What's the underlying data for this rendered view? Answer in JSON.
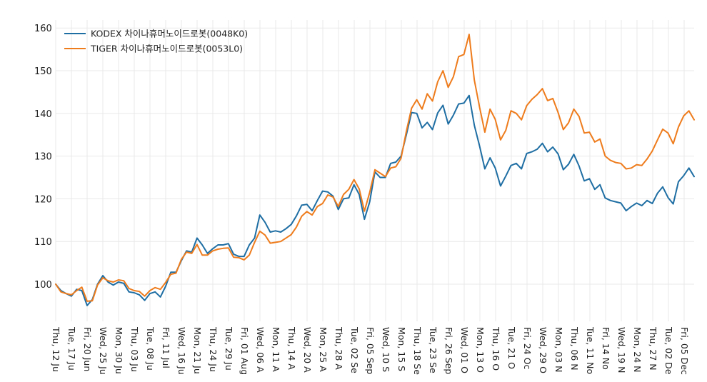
{
  "chart_data": {
    "type": "line",
    "title": "",
    "xlabel": "",
    "ylabel": "",
    "ylim": [
      93,
      162
    ],
    "yticks": [
      100,
      110,
      120,
      130,
      140,
      150,
      160
    ],
    "grid": true,
    "legend_position": "top-left",
    "tick_labels": [
      "Thu, 12 Ju",
      "Tue, 17 Ju",
      "Fri, 20 Jun",
      "Wed, 25 Ju",
      "Mon, 30 Ju",
      "Thu, 03 Ju",
      "Tue, 08 Ju",
      "Fri, 11 Jul",
      "Wed, 16 Ju",
      "Mon, 21 Ju",
      "Thu, 24 Ju",
      "Tue, 29 Ju",
      "Fri, 01 Aug",
      "Wed, 06 A",
      "Mon, 11 A",
      "Thu, 14 A",
      "Wed, 20 A",
      "Mon, 25 A",
      "Thu, 28 A",
      "Tue, 02 Se",
      "Fri, 05 Sep",
      "Wed, 10 S",
      "Mon, 15 S",
      "Thu, 18 Se",
      "Tue, 23 Se",
      "Fri, 26 Sep",
      "Wed, 01 O",
      "Mon, 13 O",
      "Thu, 16 O",
      "Tue, 21 O",
      "Fri, 24 Oc",
      "Wed, 29 O",
      "Mon, 03 N",
      "Thu, 06 N",
      "Tue, 11 No",
      "Fri, 14 No",
      "Wed, 19 N",
      "Mon, 24 N",
      "Thu, 27 N",
      "Tue, 02 De",
      "Fri, 05 Dec"
    ],
    "series": [
      {
        "name": "KODEX 차이나휴머노이드로봇(0048K0)",
        "color": "#1f6ea3",
        "values": [
          100,
          98.5,
          97.8,
          97.2,
          98.8,
          98.5,
          95.0,
          96.4,
          100.0,
          102.0,
          100.5,
          99.8,
          100.5,
          100.2,
          98.2,
          98.0,
          97.5,
          96.2,
          97.8,
          98.2,
          97.0,
          99.5,
          102.8,
          102.8,
          105.5,
          107.8,
          107.5,
          110.8,
          109.2,
          107.2,
          108.3,
          109.2,
          109.2,
          109.5,
          107.0,
          106.5,
          106.5,
          109.2,
          110.8,
          116.2,
          114.5,
          112.2,
          112.5,
          112.2,
          113.0,
          114.0,
          116.0,
          118.5,
          118.7,
          117.2,
          119.6,
          121.8,
          121.6,
          120.6,
          117.5,
          120.0,
          120.2,
          123.3,
          121.0,
          115.2,
          119.3,
          126.3,
          125.0,
          125.0,
          128.3,
          128.6,
          130.0,
          135.0,
          140.2,
          140.0,
          136.6,
          137.9,
          136.2,
          140.1,
          141.9,
          137.5,
          139.6,
          142.2,
          142.4,
          144.2,
          137.2,
          132.3,
          127.0,
          129.6,
          127.2,
          123.0,
          125.3,
          127.8,
          128.3,
          127.0,
          130.6,
          131.0,
          131.6,
          133.0,
          131.0,
          132.1,
          130.5,
          126.8,
          128.1,
          130.4,
          127.7,
          124.2,
          124.7,
          122.2,
          123.3,
          120.2,
          119.6,
          119.3,
          119.0,
          117.2,
          118.2,
          119.0,
          118.4,
          119.6,
          118.9,
          121.3,
          122.8,
          120.3,
          118.8,
          124.0,
          125.4,
          127.2,
          125.2
        ]
      },
      {
        "name": "TIGER 차이나휴머노이드로봇(0053L0)",
        "color": "#ee7b1c",
        "values": [
          100,
          98.2,
          97.8,
          97.5,
          98.5,
          99.3,
          96.0,
          96.1,
          99.8,
          101.5,
          100.8,
          100.5,
          101.0,
          100.8,
          99.0,
          98.5,
          98.3,
          97.2,
          98.5,
          99.2,
          98.8,
          100.4,
          102.3,
          102.6,
          105.8,
          107.5,
          107.2,
          109.3,
          106.8,
          106.8,
          107.8,
          108.2,
          108.4,
          108.5,
          106.3,
          106.2,
          105.7,
          106.8,
          109.8,
          112.4,
          111.5,
          109.6,
          109.8,
          110.0,
          110.8,
          111.6,
          113.4,
          115.9,
          117.0,
          116.2,
          118.2,
          118.9,
          120.9,
          120.4,
          118.2,
          121.0,
          122.2,
          124.5,
          122.3,
          117.1,
          121.5,
          126.8,
          126.0,
          125.2,
          127.2,
          127.5,
          129.5,
          135.8,
          141.2,
          143.2,
          141.0,
          144.6,
          142.9,
          147.4,
          150.0,
          146.1,
          148.6,
          153.3,
          153.8,
          158.5,
          147.8,
          141.4,
          135.6,
          141.0,
          138.6,
          133.8,
          136.0,
          140.6,
          140.0,
          138.5,
          141.8,
          143.3,
          144.4,
          145.8,
          143.0,
          143.5,
          140.2,
          136.2,
          137.8,
          141.0,
          139.3,
          135.4,
          135.6,
          133.3,
          134.0,
          130.0,
          129.0,
          128.5,
          128.3,
          127.0,
          127.2,
          128.0,
          127.8,
          129.3,
          131.2,
          133.8,
          136.3,
          135.4,
          132.9,
          136.8,
          139.4,
          140.6,
          138.5
        ]
      }
    ]
  }
}
